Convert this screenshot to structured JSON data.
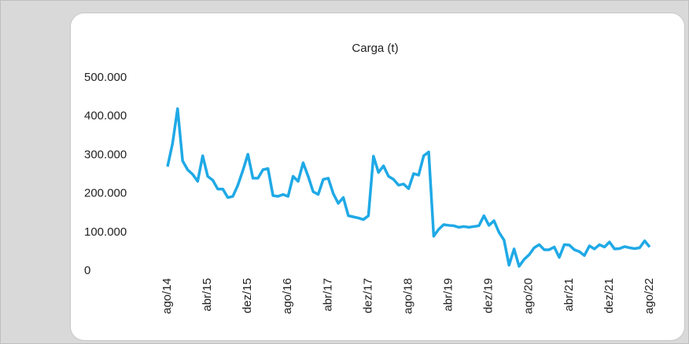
{
  "chart_data": {
    "type": "line",
    "title": "Carga (t)",
    "categories": [
      "ago/14",
      null,
      null,
      null,
      null,
      null,
      null,
      null,
      "abr/15",
      null,
      null,
      null,
      null,
      null,
      null,
      null,
      "dez/15",
      null,
      null,
      null,
      null,
      null,
      null,
      null,
      "ago/16",
      null,
      null,
      null,
      null,
      null,
      null,
      null,
      "abr/17",
      null,
      null,
      null,
      null,
      null,
      null,
      null,
      "dez/17",
      null,
      null,
      null,
      null,
      null,
      null,
      null,
      "ago/18",
      null,
      null,
      null,
      null,
      null,
      null,
      null,
      "abr/19",
      null,
      null,
      null,
      null,
      null,
      null,
      null,
      "dez/19",
      null,
      null,
      null,
      null,
      null,
      null,
      null,
      "ago/20",
      null,
      null,
      null,
      null,
      null,
      null,
      null,
      "abr/21",
      null,
      null,
      null,
      null,
      null,
      null,
      null,
      "dez/21",
      null,
      null,
      null,
      null,
      null,
      null,
      null,
      "ago/22"
    ],
    "values": [
      270000,
      330000,
      420000,
      285000,
      262000,
      250000,
      232000,
      298000,
      245000,
      235000,
      212000,
      212000,
      190000,
      193000,
      222000,
      260000,
      302000,
      240000,
      240000,
      262000,
      265000,
      195000,
      193000,
      198000,
      193000,
      245000,
      232000,
      280000,
      245000,
      205000,
      198000,
      237000,
      240000,
      200000,
      175000,
      190000,
      143000,
      140000,
      137000,
      133000,
      143000,
      297000,
      255000,
      272000,
      245000,
      237000,
      222000,
      225000,
      213000,
      252000,
      248000,
      298000,
      308000,
      90000,
      108000,
      120000,
      118000,
      117000,
      113000,
      115000,
      113000,
      115000,
      117000,
      143000,
      118000,
      130000,
      100000,
      80000,
      15000,
      57000,
      12000,
      30000,
      42000,
      60000,
      68000,
      55000,
      55000,
      62000,
      35000,
      68000,
      67000,
      55000,
      50000,
      40000,
      65000,
      57000,
      68000,
      62000,
      75000,
      57000,
      58000,
      63000,
      60000,
      58000,
      60000,
      78000,
      62000
    ],
    "color": "#1fa9e6",
    "ylim": [
      0,
      500000
    ],
    "yticks": [
      0,
      {
        "value": 100000,
        "label": "100.000"
      },
      {
        "value": 200000,
        "label": "200.000"
      },
      {
        "value": 300000,
        "label": "300.000"
      },
      {
        "value": 400000,
        "label": "400.000"
      },
      {
        "value": 500000,
        "label": "500.000"
      }
    ],
    "grid": false
  }
}
